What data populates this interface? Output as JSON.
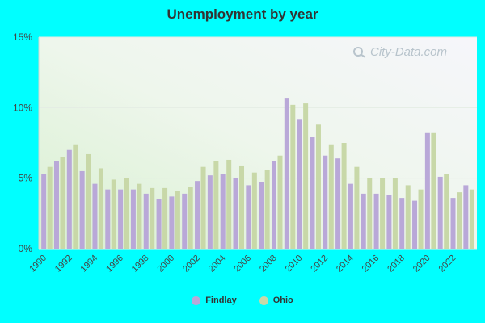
{
  "chart_data": {
    "type": "bar",
    "title": "Unemployment by year",
    "xlabel": "",
    "ylabel": "",
    "ylim": [
      0,
      15
    ],
    "y_ticks": [
      "0%",
      "5%",
      "10%",
      "15%"
    ],
    "x_tick_labels": [
      "1990",
      "1992",
      "1994",
      "1996",
      "1998",
      "2000",
      "2002",
      "2004",
      "2006",
      "2008",
      "2010",
      "2012",
      "2014",
      "2016",
      "2018",
      "2020",
      "2022"
    ],
    "categories": [
      "1990",
      "1991",
      "1992",
      "1993",
      "1994",
      "1995",
      "1996",
      "1997",
      "1998",
      "1999",
      "2000",
      "2001",
      "2002",
      "2003",
      "2004",
      "2005",
      "2006",
      "2007",
      "2008",
      "2009",
      "2010",
      "2011",
      "2012",
      "2013",
      "2014",
      "2015",
      "2016",
      "2017",
      "2018",
      "2019",
      "2020",
      "2021",
      "2022",
      "2023"
    ],
    "series": [
      {
        "name": "Findlay",
        "color": "#b9a8d8",
        "values": [
          5.3,
          6.2,
          7.0,
          5.5,
          4.6,
          4.2,
          4.2,
          4.2,
          3.9,
          3.5,
          3.7,
          3.9,
          4.8,
          5.2,
          5.3,
          5.0,
          4.5,
          4.7,
          6.2,
          10.7,
          9.2,
          7.9,
          6.6,
          6.4,
          4.6,
          3.9,
          3.9,
          3.8,
          3.6,
          3.4,
          8.2,
          5.1,
          3.6,
          4.5
        ]
      },
      {
        "name": "Ohio",
        "color": "#c8d8a8",
        "values": [
          5.8,
          6.5,
          7.4,
          6.7,
          5.7,
          4.9,
          5.0,
          4.6,
          4.3,
          4.3,
          4.1,
          4.4,
          5.8,
          6.2,
          6.3,
          5.9,
          5.4,
          5.6,
          6.6,
          10.2,
          10.3,
          8.8,
          7.4,
          7.5,
          5.8,
          5.0,
          5.0,
          5.0,
          4.5,
          4.2,
          8.2,
          5.3,
          4.0,
          4.2
        ]
      }
    ],
    "legend_position": "bottom-center",
    "grid": true
  },
  "watermark": "City-Data.com"
}
